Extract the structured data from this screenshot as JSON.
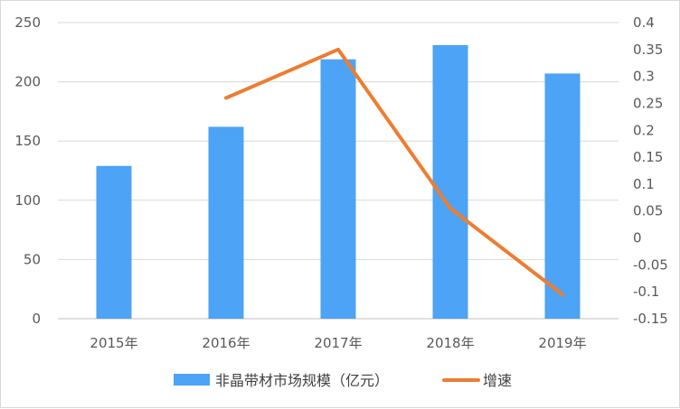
{
  "chart_data": {
    "type": "bar",
    "categories": [
      "2015年",
      "2016年",
      "2017年",
      "2018年",
      "2019年"
    ],
    "series": [
      {
        "name": "非晶带材市场规模（亿元）",
        "type": "bar",
        "axis": "left",
        "color": "#4da3f5",
        "values": [
          129,
          162,
          219,
          231,
          207
        ]
      },
      {
        "name": "增速",
        "type": "line",
        "axis": "right",
        "color": "#ed7d31",
        "values": [
          null,
          0.26,
          0.35,
          0.055,
          -0.105
        ]
      }
    ],
    "y_left": {
      "min": 0,
      "max": 250,
      "step": 50,
      "ticks": [
        "0",
        "50",
        "100",
        "150",
        "200",
        "250"
      ]
    },
    "y_right": {
      "min": -0.15,
      "max": 0.4,
      "step": 0.05,
      "ticks": [
        "-0.15",
        "-0.1",
        "-0.05",
        "0",
        "0.05",
        "0.1",
        "0.15",
        "0.2",
        "0.25",
        "0.3",
        "0.35",
        "0.4"
      ]
    },
    "grid": true,
    "legend_position": "bottom"
  }
}
